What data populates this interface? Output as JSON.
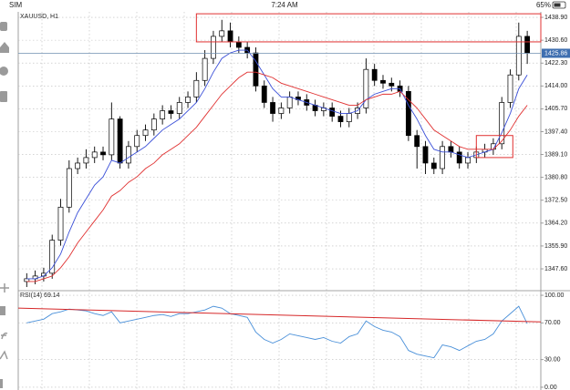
{
  "status_bar": {
    "carrier": "SIM",
    "time": "7:24 AM",
    "battery": "65%"
  },
  "chart_data": [
    {
      "type": "candlestick",
      "title": "XAUUSD, H1",
      "xlim": [
        -1,
        60.6
      ],
      "ylim": [
        1340.0,
        1440.9
      ],
      "yticks": [
        {
          "value": 1438.9,
          "label": "1438.90"
        },
        {
          "value": 1430.6,
          "label": "1430.60"
        },
        {
          "value": 1422.3,
          "label": "1422.30"
        },
        {
          "value": 1414.0,
          "label": "1414.00"
        },
        {
          "value": 1405.7,
          "label": "1405.70"
        },
        {
          "value": 1397.4,
          "label": "1397.40"
        },
        {
          "value": 1389.1,
          "label": "1389.10"
        },
        {
          "value": 1380.8,
          "label": "1380.80"
        },
        {
          "value": 1372.5,
          "label": "1372.50"
        },
        {
          "value": 1364.2,
          "label": "1364.20"
        },
        {
          "value": 1355.9,
          "label": "1355.90"
        },
        {
          "value": 1347.6,
          "label": "1347.60"
        }
      ],
      "grid": true,
      "color": "#000000",
      "open": [
        1343,
        1344,
        1345,
        1346,
        1358,
        1370,
        1384,
        1386,
        1388,
        1390,
        1389,
        1402,
        1386,
        1392,
        1396,
        1398,
        1402,
        1405,
        1404,
        1408,
        1410,
        1416,
        1424,
        1432,
        1434,
        1430,
        1428,
        1426,
        1414,
        1408,
        1404,
        1406,
        1410,
        1409,
        1407,
        1405,
        1406,
        1403,
        1401,
        1404,
        1406,
        1420,
        1416,
        1415,
        1414,
        1412,
        1396,
        1392,
        1386,
        1384,
        1392,
        1390,
        1386,
        1388,
        1390,
        1391,
        1393,
        1408,
        1418,
        1432
      ],
      "high": [
        1346,
        1347,
        1348,
        1360,
        1373,
        1387,
        1388,
        1391,
        1392,
        1392,
        1408,
        1403,
        1394,
        1398,
        1400,
        1404,
        1407,
        1407,
        1410,
        1412,
        1419,
        1427,
        1434,
        1438,
        1437,
        1432,
        1430,
        1428,
        1416,
        1410,
        1408,
        1412,
        1412,
        1411,
        1409,
        1408,
        1408,
        1405,
        1406,
        1408,
        1424,
        1422,
        1418,
        1417,
        1416,
        1414,
        1398,
        1394,
        1388,
        1394,
        1394,
        1392,
        1390,
        1392,
        1393,
        1395,
        1410,
        1420,
        1437,
        1434
      ],
      "low": [
        1341,
        1342,
        1343,
        1344,
        1356,
        1368,
        1382,
        1384,
        1386,
        1387,
        1387,
        1384,
        1384,
        1390,
        1394,
        1396,
        1400,
        1402,
        1402,
        1406,
        1408,
        1414,
        1422,
        1430,
        1428,
        1426,
        1424,
        1412,
        1406,
        1401,
        1402,
        1404,
        1407,
        1405,
        1403,
        1403,
        1401,
        1399,
        1399,
        1402,
        1404,
        1414,
        1413,
        1412,
        1410,
        1394,
        1384,
        1382,
        1382,
        1382,
        1388,
        1384,
        1384,
        1386,
        1388,
        1389,
        1391,
        1406,
        1416,
        1422
      ],
      "close": [
        1344,
        1345,
        1346,
        1358,
        1370,
        1384,
        1386,
        1388,
        1390,
        1389,
        1402,
        1386,
        1392,
        1396,
        1398,
        1402,
        1405,
        1404,
        1408,
        1410,
        1416,
        1424,
        1432,
        1434,
        1430,
        1428,
        1426,
        1414,
        1408,
        1404,
        1406,
        1410,
        1409,
        1407,
        1405,
        1406,
        1403,
        1401,
        1404,
        1406,
        1420,
        1416,
        1415,
        1414,
        1412,
        1396,
        1392,
        1386,
        1384,
        1392,
        1390,
        1386,
        1388,
        1390,
        1391,
        1393,
        1408,
        1418,
        1432,
        1426
      ],
      "series": [
        {
          "color": "#3a4fd8",
          "values": [
            1344,
            1344,
            1345,
            1348,
            1353,
            1361,
            1368,
            1373,
            1378,
            1381,
            1387,
            1386,
            1388,
            1390,
            1392,
            1395,
            1398,
            1400,
            1402,
            1405,
            1408,
            1413,
            1419,
            1424,
            1426,
            1427,
            1427,
            1423,
            1418,
            1413,
            1410,
            1410,
            1409,
            1408,
            1407,
            1406,
            1405,
            1404,
            1404,
            1405,
            1409,
            1411,
            1412,
            1413,
            1413,
            1407,
            1402,
            1396,
            1391,
            1390,
            1390,
            1389,
            1388,
            1389,
            1390,
            1391,
            1397,
            1404,
            1413,
            1418
          ]
        },
        {
          "color": "#e03030",
          "values": [
            1343,
            1343,
            1344,
            1345,
            1348,
            1352,
            1357,
            1361,
            1365,
            1369,
            1374,
            1376,
            1379,
            1381,
            1384,
            1386,
            1389,
            1391,
            1393,
            1396,
            1399,
            1403,
            1407,
            1411,
            1414,
            1417,
            1419,
            1419,
            1418,
            1417,
            1415,
            1414,
            1413,
            1412,
            1411,
            1410,
            1409,
            1408,
            1407,
            1407,
            1409,
            1410,
            1411,
            1411,
            1412,
            1409,
            1406,
            1402,
            1398,
            1396,
            1394,
            1392,
            1391,
            1391,
            1391,
            1391,
            1394,
            1398,
            1403,
            1407
          ]
        }
      ],
      "current_price": {
        "value": 1425.86,
        "label": "1425.86"
      },
      "boxes": [
        {
          "x": [
            20,
            60.6
          ],
          "y": [
            1430.0,
            1440.2
          ],
          "color": "#e03030"
        },
        {
          "x": [
            53,
            57.3
          ],
          "y": [
            1388,
            1396
          ],
          "color": "#e03030"
        }
      ]
    },
    {
      "type": "line",
      "title": "RSI(14) 69.14",
      "xlim": [
        -1,
        60.6
      ],
      "ylim": [
        -3,
        104
      ],
      "yticks": [
        {
          "value": 100,
          "label": "100.00"
        },
        {
          "value": 70,
          "label": "70.00"
        },
        {
          "value": 30,
          "label": "30.00"
        },
        {
          "value": 0,
          "label": "0.00"
        }
      ],
      "grid": true,
      "series": [
        {
          "color": "#4a90d9",
          "values": [
            70,
            72,
            74,
            80,
            82,
            85,
            84,
            83,
            80,
            78,
            82,
            70,
            72,
            74,
            76,
            78,
            79,
            77,
            80,
            80,
            82,
            84,
            88,
            86,
            80,
            78,
            76,
            60,
            52,
            48,
            52,
            58,
            56,
            54,
            52,
            54,
            50,
            48,
            55,
            58,
            72,
            66,
            62,
            60,
            55,
            40,
            36,
            34,
            32,
            46,
            44,
            40,
            45,
            50,
            52,
            58,
            72,
            80,
            88,
            69.14
          ]
        }
      ],
      "trendlines": [
        {
          "x": [
            -1,
            60.6
          ],
          "y": [
            86,
            71
          ],
          "color": "#d62728"
        }
      ]
    }
  ]
}
